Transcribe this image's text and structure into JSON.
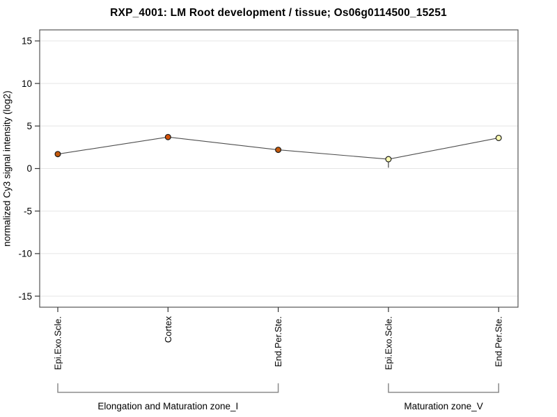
{
  "chart_data": {
    "type": "line",
    "title": "RXP_4001: LM Root development / tissue; Os06g0114500_15251",
    "ylabel": "normalized Cy3 signal intensity (log2)",
    "xlabel": "",
    "categories": [
      "Epi.Exo.Scle.",
      "Cortex",
      "End.Per.Ste.",
      "Epi.Exo.Scle.",
      "End.Per.Ste."
    ],
    "values": [
      1.7,
      3.7,
      2.2,
      1.1,
      3.6
    ],
    "point_fill_colors": [
      "#c4590b",
      "#d4520a",
      "#c4590b",
      "#ffffb3",
      "#ffffb3"
    ],
    "point_outline_color": "#1a1a1a",
    "error_bars": [
      {
        "index": 3,
        "low": 0.1,
        "high": 1.1
      }
    ],
    "yticks": [
      -15,
      -10,
      -5,
      0,
      5,
      10,
      15
    ],
    "ylim": [
      -16.3,
      16.3
    ],
    "grid": true,
    "grid_color": "#e5e5e5",
    "line_color": "#4d4d4d",
    "axis_color": "#555555",
    "tick_color": "#333333",
    "bracket_color": "#8a8a8a",
    "legend": "none",
    "groups": [
      {
        "label": "Elongation and Maturation zone_I",
        "from": 0,
        "to": 2
      },
      {
        "label": "Maturation zone_V",
        "from": 3,
        "to": 4
      }
    ]
  }
}
